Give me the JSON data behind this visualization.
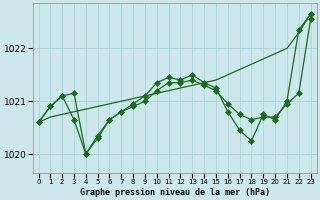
{
  "title": "Graphe pression niveau de la mer (hPa)",
  "background_color": "#cce8ec",
  "grid_color": "#a8d4d8",
  "line_color": "#1a6b1a",
  "y_ticks": [
    1020,
    1021,
    1022
  ],
  "ylim": [
    1019.65,
    1022.85
  ],
  "xlim": [
    -0.5,
    23.5
  ],
  "series_jagged1": [
    1020.6,
    1020.9,
    1021.1,
    1021.15,
    1020.0,
    1020.35,
    1020.65,
    1020.8,
    1020.95,
    1021.1,
    1021.35,
    1021.45,
    1021.4,
    1021.5,
    1021.35,
    1021.25,
    1020.8,
    1020.45,
    1020.25,
    1020.75,
    1020.65,
    1021.0,
    1022.35,
    1022.65
  ],
  "series_jagged2": [
    1020.6,
    1020.9,
    1021.1,
    1020.65,
    1020.0,
    1020.3,
    1020.65,
    1020.8,
    1020.9,
    1021.0,
    1021.2,
    1021.35,
    1021.35,
    1021.4,
    1021.3,
    1021.2,
    1020.95,
    1020.75,
    1020.65,
    1020.7,
    1020.7,
    1020.95,
    1021.15,
    1022.55
  ],
  "series_trend": [
    1020.6,
    1020.7,
    1020.75,
    1020.8,
    1020.85,
    1020.9,
    1020.95,
    1021.0,
    1021.05,
    1021.1,
    1021.15,
    1021.2,
    1021.25,
    1021.3,
    1021.35,
    1021.4,
    1021.5,
    1021.6,
    1021.7,
    1021.8,
    1021.9,
    1022.0,
    1022.3,
    1022.65
  ],
  "marker": "+",
  "markersize": 3,
  "linewidth": 0.9,
  "xlabel_fontsize": 6.0,
  "ytick_fontsize": 6.5,
  "xtick_fontsize": 5.0
}
